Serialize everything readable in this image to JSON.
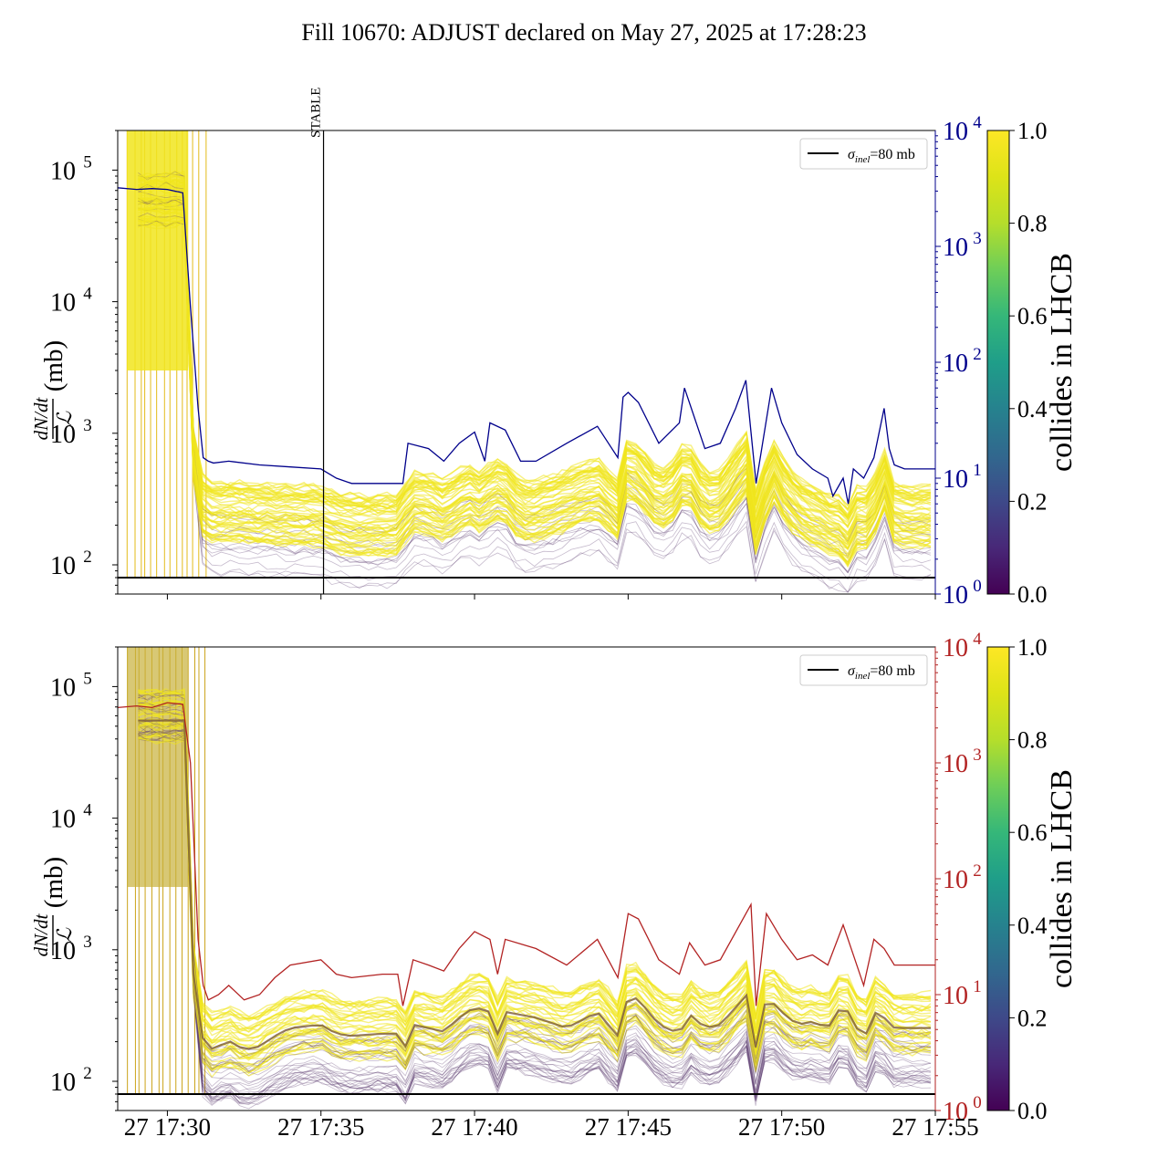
{
  "figure_title": "Fill 10670: ADJUST declared on May 27, 2025 at 17:28:23",
  "colors": {
    "top_secondary": "#00008b",
    "bottom_secondary": "#b22222",
    "reference_line": "#000000",
    "fill_high": "#f1e51d",
    "fill_low": "#5b3c70"
  },
  "chart_data": [
    {
      "type": "line",
      "panel": "top",
      "ylabel_num": "dN/dt",
      "ylabel_den": "ℒ",
      "ylabel_unit": "(mb)",
      "yscale": "log",
      "ylim": [
        60,
        200000
      ],
      "yticks": [
        {
          "v": 100,
          "e": "2"
        },
        {
          "v": 1000,
          "e": "3"
        },
        {
          "v": 10000,
          "e": "4"
        },
        {
          "v": 100000,
          "e": "5"
        }
      ],
      "y2scale": "log",
      "y2lim": [
        1,
        10000
      ],
      "y2ticks": [
        {
          "v": 1,
          "e": "0"
        },
        {
          "v": 10,
          "e": "1"
        },
        {
          "v": 100,
          "e": "2"
        },
        {
          "v": 1000,
          "e": "3"
        },
        {
          "v": 10000,
          "e": "4"
        }
      ],
      "xlim": [
        "17:28:23",
        "17:55:00"
      ],
      "xticks": [
        "27 17:30",
        "27 17:35",
        "27 17:40",
        "27 17:45",
        "27 17:50",
        "27 17:55"
      ],
      "show_xtick_labels": false,
      "vline": {
        "x": "17:35:05",
        "label": "STABLE"
      },
      "hline": {
        "y": 80,
        "legend": "σinel=80 mb",
        "legend_sym": "σ",
        "legend_sub": "inel",
        "legend_rest": "=80 mb"
      },
      "colorbar": {
        "label": "collides in LHCB",
        "ticks": [
          "0.0",
          "0.2",
          "0.4",
          "0.6",
          "0.8",
          "1.0"
        ]
      },
      "secondary_series": {
        "x": [
          "17:28:23",
          "17:29:00",
          "17:29:30",
          "17:30:00",
          "17:30:30",
          "17:30:45",
          "17:31:00",
          "17:31:10",
          "17:31:20",
          "17:31:30",
          "17:32:00",
          "17:33:00",
          "17:34:00",
          "17:35:00",
          "17:35:30",
          "17:36:00",
          "17:37:00",
          "17:37:40",
          "17:37:50",
          "17:38:30",
          "17:39:00",
          "17:39:30",
          "17:40:00",
          "17:40:20",
          "17:40:30",
          "17:41:00",
          "17:41:30",
          "17:42:00",
          "17:43:00",
          "17:44:00",
          "17:44:40",
          "17:44:50",
          "17:45:00",
          "17:45:20",
          "17:46:00",
          "17:46:40",
          "17:46:50",
          "17:47:30",
          "17:48:00",
          "17:48:30",
          "17:48:50",
          "17:49:00",
          "17:49:10",
          "17:49:40",
          "17:50:00",
          "17:50:30",
          "17:51:00",
          "17:51:30",
          "17:51:40",
          "17:52:00",
          "17:52:10",
          "17:52:20",
          "17:52:40",
          "17:53:00",
          "17:53:20",
          "17:53:30",
          "17:53:40",
          "17:54:00",
          "17:55:00"
        ],
        "y": [
          3200,
          3100,
          3150,
          3100,
          2900,
          300,
          40,
          15,
          14,
          13.5,
          14,
          13,
          12.5,
          12,
          10,
          9,
          9,
          9,
          20,
          18,
          14,
          20,
          25,
          14,
          30,
          26,
          14,
          14,
          20,
          28,
          15,
          50,
          55,
          45,
          20,
          30,
          60,
          18,
          20,
          40,
          70,
          25,
          9,
          60,
          30,
          16,
          12,
          10,
          7,
          10,
          6,
          12,
          10,
          15,
          40,
          18,
          13,
          12,
          12
        ]
      }
    },
    {
      "type": "line",
      "panel": "bottom",
      "ylabel_num": "dN/dt",
      "ylabel_den": "ℒ",
      "ylabel_unit": "(mb)",
      "yscale": "log",
      "ylim": [
        60,
        200000
      ],
      "yticks": [
        {
          "v": 100,
          "e": "2"
        },
        {
          "v": 1000,
          "e": "3"
        },
        {
          "v": 10000,
          "e": "4"
        },
        {
          "v": 100000,
          "e": "5"
        }
      ],
      "y2scale": "log",
      "y2lim": [
        1,
        10000
      ],
      "y2ticks": [
        {
          "v": 1,
          "e": "0"
        },
        {
          "v": 10,
          "e": "1"
        },
        {
          "v": 100,
          "e": "2"
        },
        {
          "v": 1000,
          "e": "3"
        },
        {
          "v": 10000,
          "e": "4"
        }
      ],
      "xlim": [
        "17:28:23",
        "17:55:00"
      ],
      "xticks": [
        "27 17:30",
        "27 17:35",
        "27 17:40",
        "27 17:45",
        "27 17:50",
        "27 17:55"
      ],
      "show_xtick_labels": true,
      "hline": {
        "y": 80,
        "legend": "σinel=80 mb",
        "legend_sym": "σ",
        "legend_sub": "inel",
        "legend_rest": "=80 mb"
      },
      "colorbar": {
        "label": "collides in LHCB",
        "ticks": [
          "0.0",
          "0.2",
          "0.4",
          "0.6",
          "0.8",
          "1.0"
        ]
      },
      "secondary_series": {
        "x": [
          "17:28:23",
          "17:29:00",
          "17:29:30",
          "17:30:00",
          "17:30:30",
          "17:30:45",
          "17:31:00",
          "17:31:10",
          "17:31:20",
          "17:31:40",
          "17:32:00",
          "17:32:30",
          "17:33:00",
          "17:33:30",
          "17:34:00",
          "17:35:00",
          "17:35:30",
          "17:36:00",
          "17:37:00",
          "17:37:30",
          "17:37:40",
          "17:38:00",
          "17:38:30",
          "17:39:00",
          "17:39:30",
          "17:40:00",
          "17:40:30",
          "17:40:45",
          "17:41:00",
          "17:42:00",
          "17:43:00",
          "17:44:00",
          "17:44:40",
          "17:45:00",
          "17:45:20",
          "17:46:00",
          "17:46:40",
          "17:47:00",
          "17:47:30",
          "17:48:00",
          "17:49:00",
          "17:49:10",
          "17:49:30",
          "17:50:00",
          "17:50:30",
          "17:51:00",
          "17:51:30",
          "17:52:00",
          "17:52:40",
          "17:53:00",
          "17:53:20",
          "17:53:40",
          "17:54:00",
          "17:55:00"
        ],
        "y": [
          3000,
          3100,
          3000,
          3300,
          3200,
          1000,
          30,
          12,
          9,
          10,
          12,
          9,
          10,
          14,
          18,
          20,
          15,
          14,
          15,
          15,
          8,
          20,
          18,
          16,
          25,
          35,
          30,
          15,
          30,
          25,
          18,
          30,
          14,
          50,
          45,
          20,
          15,
          28,
          18,
          20,
          60,
          8,
          50,
          30,
          20,
          22,
          18,
          40,
          12,
          30,
          25,
          18,
          18,
          18
        ]
      }
    }
  ]
}
